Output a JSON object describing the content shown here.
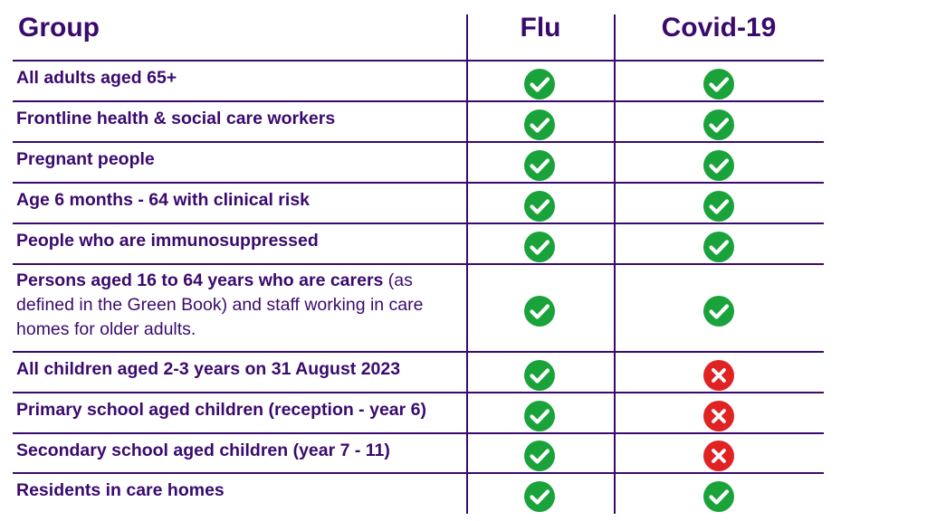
{
  "header": {
    "group": "Group",
    "flu": "Flu",
    "covid": "Covid-19"
  },
  "colors": {
    "text": "#3a0a6e",
    "yes": "#1aa33a",
    "no": "#e02222"
  },
  "rows": [
    {
      "bold": "All adults aged 65+",
      "normal": "",
      "flu": "yes",
      "covid": "yes"
    },
    {
      "bold": "Frontline health & social care workers",
      "normal": "",
      "flu": "yes",
      "covid": "yes"
    },
    {
      "bold": "Pregnant people",
      "normal": "",
      "flu": "yes",
      "covid": "yes"
    },
    {
      "bold": "Age 6 months - 64 with clinical risk",
      "normal": "",
      "flu": "yes",
      "covid": "yes"
    },
    {
      "bold": "People who are immunosuppressed",
      "normal": "",
      "flu": "yes",
      "covid": "yes"
    },
    {
      "bold": "Persons aged 16 to 64 years who are carers",
      "normal": " (as defined in the Green Book) and staff working in care homes for older adults.",
      "flu": "yes",
      "covid": "yes"
    },
    {
      "bold": "All children aged 2-3 years on 31 August 2023",
      "normal": "",
      "flu": "yes",
      "covid": "no"
    },
    {
      "bold": "Primary school aged children (reception - year 6)",
      "normal": "",
      "flu": "yes",
      "covid": "no"
    },
    {
      "bold": "Secondary school aged children (year 7 - 11)",
      "normal": "",
      "flu": "yes",
      "covid": "no"
    },
    {
      "bold": "Residents in care homes",
      "normal": "",
      "flu": "yes",
      "covid": "yes"
    }
  ]
}
